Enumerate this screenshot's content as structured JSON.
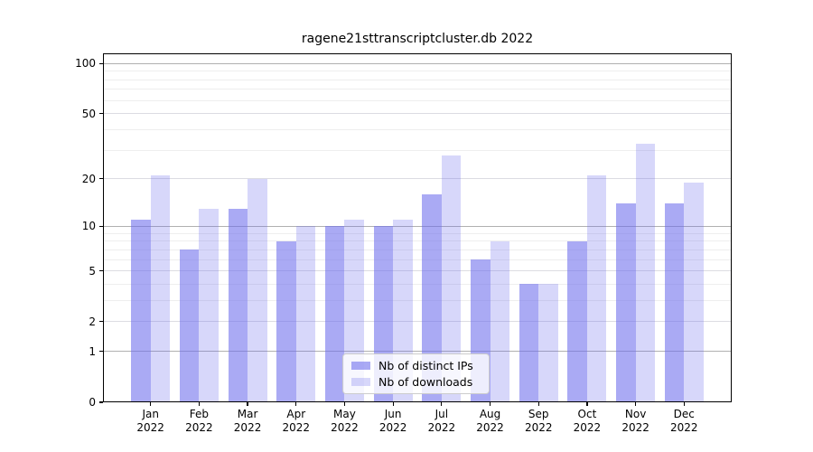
{
  "title": "ragene21sttranscriptcluster.db 2022",
  "chart_data": {
    "type": "bar",
    "title": "ragene21sttranscriptcluster.db 2022",
    "categories": [
      "Jan 2022",
      "Feb 2022",
      "Mar 2022",
      "Apr 2022",
      "May 2022",
      "Jun 2022",
      "Jul 2022",
      "Aug 2022",
      "Sep 2022",
      "Oct 2022",
      "Nov 2022",
      "Dec 2022"
    ],
    "series": [
      {
        "name": "Nb of distinct IPs",
        "color": "rgba(108,108,236,0.58)",
        "values": [
          11,
          7,
          13,
          8,
          10,
          10,
          16,
          6,
          4,
          8,
          14,
          14
        ]
      },
      {
        "name": "Nb of downloads",
        "color": "rgba(108,108,236,0.27)",
        "values": [
          21,
          13,
          20,
          10,
          11,
          11,
          28,
          8,
          4,
          21,
          33,
          19
        ]
      }
    ],
    "xlabel": "",
    "ylabel": "",
    "yscale": "log1p",
    "yticks": [
      0,
      1,
      2,
      5,
      10,
      20,
      50,
      100
    ],
    "ylim": [
      0,
      115
    ],
    "grid": true,
    "grid_levels": {
      "major": [
        1,
        10,
        100
      ],
      "mid": [
        2,
        5,
        20,
        50
      ],
      "minor": [
        3,
        4,
        6,
        7,
        8,
        9,
        30,
        40,
        60,
        70,
        80,
        90
      ]
    },
    "legend_position": "lower center"
  },
  "legend": {
    "items": [
      {
        "label": "Nb of distinct IPs"
      },
      {
        "label": "Nb of downloads"
      }
    ]
  },
  "colors": {
    "bar_dark": "rgba(108,108,236,0.58)",
    "bar_light": "rgba(108,108,236,0.27)",
    "grid_major": "#b0b0b0",
    "grid_mid": "#dcdce2",
    "grid_minor": "#eeeeee",
    "spine": "#000000",
    "background": "#ffffff"
  }
}
